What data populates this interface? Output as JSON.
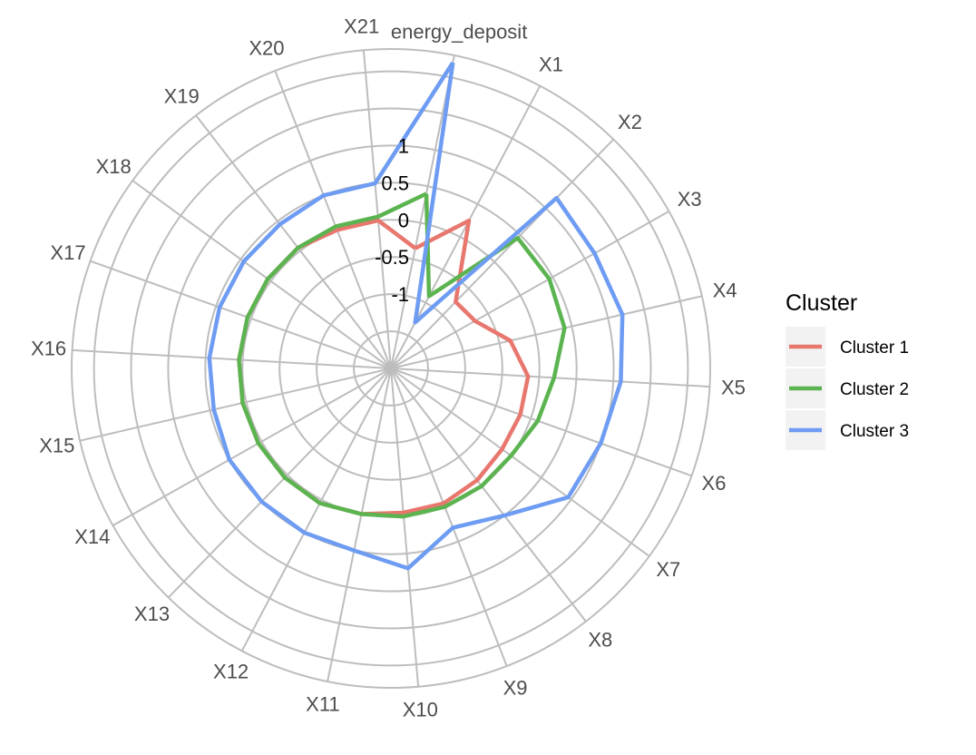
{
  "chart_data": {
    "type": "radar",
    "axes": [
      "energy_deposit",
      "X1",
      "X2",
      "X3",
      "X4",
      "X5",
      "X6",
      "X7",
      "X8",
      "X9",
      "X10",
      "X11",
      "X12",
      "X13",
      "X14",
      "X15",
      "X16",
      "X17",
      "X18",
      "X19",
      "X20",
      "X21"
    ],
    "radial_ticks": [
      "1",
      "0.5",
      "0",
      "-0.5",
      "-1"
    ],
    "radial_tick_values": [
      1,
      0.5,
      0,
      -0.5,
      -1
    ],
    "rlim": [
      -2,
      2.3
    ],
    "grid": true,
    "series": [
      {
        "name": "Cluster  1",
        "color": "#E8776E",
        "values": [
          -0.35,
          0.25,
          -0.75,
          -0.7,
          -0.35,
          -0.15,
          -0.15,
          -0.15,
          -0.1,
          -0.05,
          -0.05,
          0.0,
          0.05,
          0.05,
          0.05,
          0.05,
          0.05,
          0.05,
          0.05,
          0.05,
          0.0,
          0.0
        ]
      },
      {
        "name": "Cluster  2",
        "color": "#5BB450",
        "values": [
          0.4,
          -0.9,
          0.45,
          0.45,
          0.4,
          0.2,
          0.1,
          0.0,
          0.0,
          0.0,
          0.0,
          0.0,
          0.05,
          0.05,
          0.05,
          0.05,
          0.05,
          0.05,
          0.05,
          0.05,
          0.05,
          0.05
        ]
      },
      {
        "name": "Cluster  3",
        "color": "#6E9CF3",
        "values": [
          2.2,
          -1.3,
          1.2,
          1.15,
          1.2,
          1.1,
          1.0,
          0.95,
          0.5,
          0.3,
          0.7,
          0.5,
          0.5,
          0.5,
          0.5,
          0.45,
          0.45,
          0.45,
          0.45,
          0.45,
          0.5,
          0.5
        ]
      }
    ],
    "legend": {
      "title": "Cluster",
      "position": "right"
    }
  }
}
